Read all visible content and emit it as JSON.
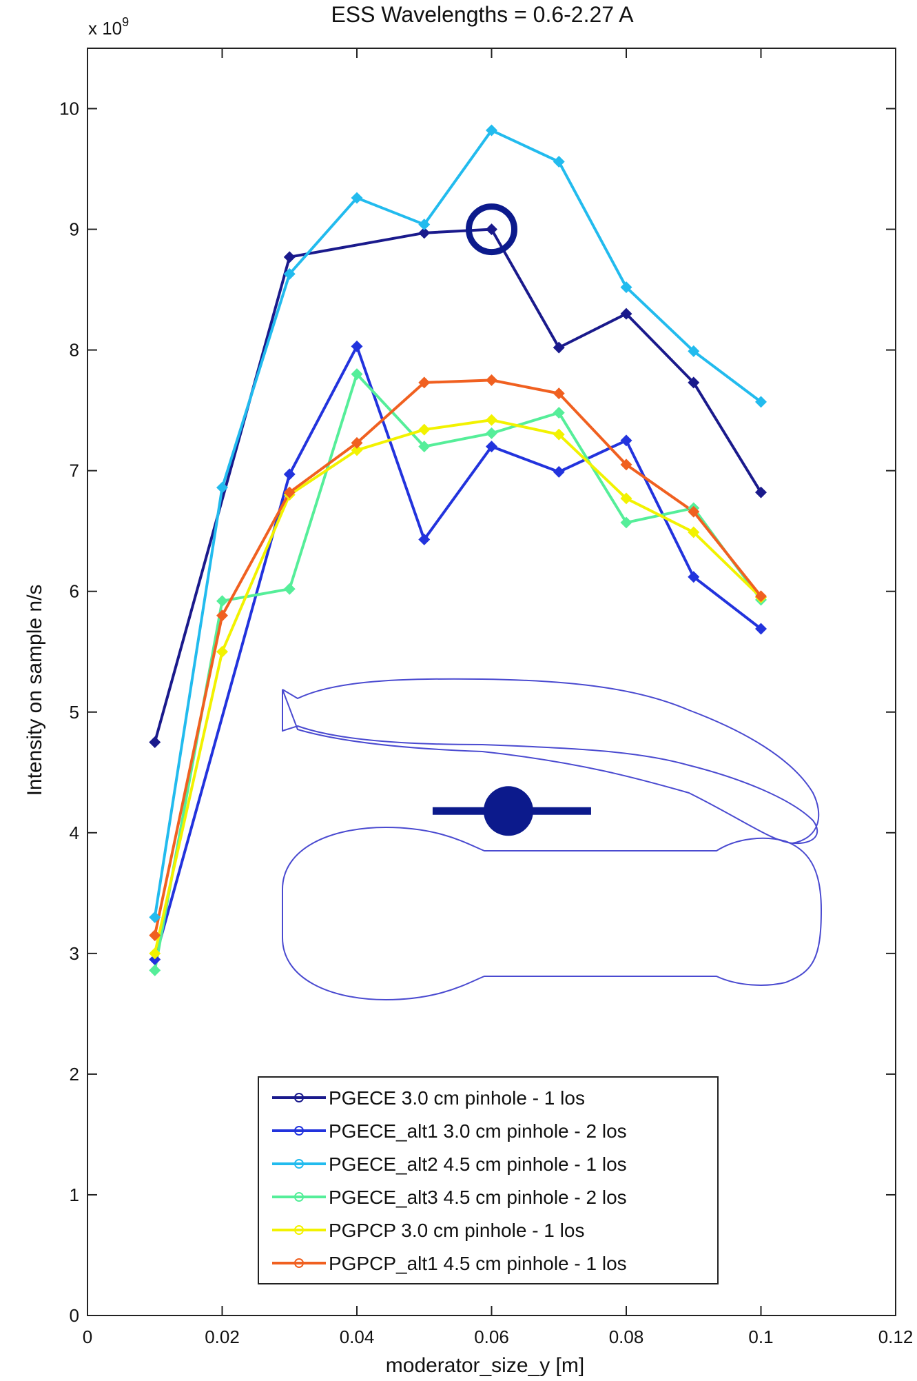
{
  "chart_data": {
    "type": "line",
    "title": "ESS Wavelengths = 0.6-2.27 A",
    "xlabel": "moderator_size_y [m]",
    "ylabel": "Intensity on sample n/s",
    "y_multiplier_label": "x 10",
    "y_multiplier_exp": "9",
    "xlim": [
      0,
      0.12
    ],
    "ylim": [
      0,
      10.5
    ],
    "x_ticks": [
      0,
      0.02,
      0.04,
      0.06,
      0.08,
      0.1,
      0.12
    ],
    "x_tick_labels": [
      "0",
      "0.02",
      "0.04",
      "0.06",
      "0.08",
      "0.1",
      "0.12"
    ],
    "y_ticks": [
      0,
      1,
      2,
      3,
      4,
      5,
      6,
      7,
      8,
      9,
      10
    ],
    "y_tick_labels": [
      "0",
      "1",
      "2",
      "3",
      "4",
      "5",
      "6",
      "7",
      "8",
      "9",
      "10"
    ],
    "grid": false,
    "legend_position": "bottom-center",
    "x": [
      0.01,
      0.02,
      0.03,
      0.04,
      0.05,
      0.06,
      0.07,
      0.08,
      0.09,
      0.1
    ],
    "series": [
      {
        "name": "PGECE 3.0 cm pinhole - 1 los",
        "color": "#1a1a8c",
        "values": [
          4.75,
          null,
          8.77,
          null,
          8.97,
          9.0,
          8.02,
          8.3,
          7.73,
          6.82
        ]
      },
      {
        "name": "PGECE_alt1 3.0 cm pinhole - 2 los",
        "color": "#2233dd",
        "values": [
          2.95,
          null,
          6.97,
          8.03,
          6.43,
          7.2,
          6.99,
          7.25,
          6.12,
          5.69
        ]
      },
      {
        "name": "PGECE_alt2 4.5 cm pinhole - 1 los",
        "color": "#22bbee",
        "values": [
          3.3,
          6.86,
          8.63,
          9.26,
          9.04,
          9.82,
          9.56,
          8.52,
          7.99,
          7.57
        ]
      },
      {
        "name": "PGECE_alt3 4.5 cm pinhole - 2 los",
        "color": "#55ee99",
        "values": [
          2.86,
          5.92,
          6.02,
          7.8,
          7.2,
          7.31,
          7.48,
          6.57,
          6.69,
          5.93
        ]
      },
      {
        "name": "PGPCP 3.0 cm pinhole - 1 los",
        "color": "#f2f200",
        "values": [
          3.0,
          5.5,
          6.8,
          7.17,
          7.34,
          7.42,
          7.3,
          6.77,
          6.49,
          5.95
        ]
      },
      {
        "name": "PGPCP_alt1 4.5 cm pinhole - 1 los",
        "color": "#f06020",
        "values": [
          3.15,
          5.8,
          6.82,
          7.23,
          7.73,
          7.75,
          7.64,
          7.05,
          6.66,
          5.96
        ]
      }
    ],
    "highlight": {
      "x": 0.06,
      "y": 9.0,
      "color": "#0c1a8c"
    },
    "marker_icon": {
      "x": 0.0625,
      "y": 4.18,
      "color": "#0c1a8c"
    }
  }
}
